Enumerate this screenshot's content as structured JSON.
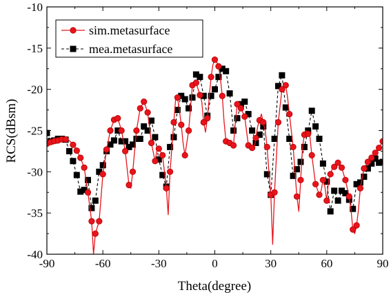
{
  "chart_data": {
    "type": "line",
    "title": "",
    "xlabel": "Theta(degree)",
    "ylabel": "RCS(dBsm)",
    "xlim": [
      -90,
      90
    ],
    "ylim": [
      -40,
      -10
    ],
    "xticks": [
      -90,
      -60,
      -30,
      0,
      30,
      60,
      90
    ],
    "yticks": [
      -10,
      -15,
      -20,
      -25,
      -30,
      -35,
      -40
    ],
    "xtick_labels": [
      "-90",
      "-60",
      "-30",
      "0",
      "30",
      "60",
      "90"
    ],
    "ytick_labels": [
      "-10",
      "-15",
      "-20",
      "-25",
      "-30",
      "-35",
      "-40"
    ],
    "grid": false,
    "legend_position": "top-left",
    "series": [
      {
        "name": "sim.metasurface",
        "color": "#e8141c",
        "line_style": "solid",
        "marker": "circle",
        "points": [
          [
            -90,
            -26.6
          ],
          [
            -87,
            -26.3
          ],
          [
            -84,
            -26.2
          ],
          [
            -81,
            -26.0
          ],
          [
            -78,
            -26.2
          ],
          [
            -75,
            -27.0
          ],
          [
            -72,
            -28.3
          ],
          [
            -70,
            -29.5
          ],
          [
            -68,
            -32.5
          ],
          [
            -66,
            -36.0
          ],
          [
            -65,
            -40.0
          ],
          [
            -64,
            -37.5
          ],
          [
            -62,
            -36.0
          ],
          [
            -60,
            -30.3
          ],
          [
            -58,
            -27.3
          ],
          [
            -56,
            -25.0
          ],
          [
            -54,
            -23.7
          ],
          [
            -52,
            -23.5
          ],
          [
            -50,
            -25.0
          ],
          [
            -48,
            -27.5
          ],
          [
            -46,
            -31.6
          ],
          [
            -45,
            -32.0
          ],
          [
            -44,
            -30.0
          ],
          [
            -42,
            -25.0
          ],
          [
            -40,
            -22.3
          ],
          [
            -38,
            -21.5
          ],
          [
            -36,
            -22.8
          ],
          [
            -34,
            -26.5
          ],
          [
            -32,
            -28.7
          ],
          [
            -31,
            -27.4
          ],
          [
            -30,
            -27.2
          ],
          [
            -28,
            -28.0
          ],
          [
            -26,
            -32.0
          ],
          [
            -25,
            -35.2
          ],
          [
            -24,
            -30.0
          ],
          [
            -22,
            -24.0
          ],
          [
            -21,
            -21.2
          ],
          [
            -20,
            -21.0
          ],
          [
            -19,
            -22.5
          ],
          [
            -18,
            -24.3
          ],
          [
            -17,
            -26.5
          ],
          [
            -16,
            -28.0
          ],
          [
            -14,
            -25.0
          ],
          [
            -12,
            -19.5
          ],
          [
            -11,
            -19.0
          ],
          [
            -10,
            -19.2
          ],
          [
            -8,
            -20.7
          ],
          [
            -7,
            -21.5
          ],
          [
            -6,
            -24.0
          ],
          [
            -5,
            -25.2
          ],
          [
            -4,
            -23.5
          ],
          [
            -2,
            -18.5
          ],
          [
            -1,
            -17.0
          ],
          [
            0,
            -16.4
          ],
          [
            1,
            -16.7
          ],
          [
            2,
            -17.2
          ],
          [
            3,
            -18.7
          ],
          [
            4,
            -20.8
          ],
          [
            5,
            -24.0
          ],
          [
            6,
            -26.3
          ],
          [
            8,
            -26.5
          ],
          [
            10,
            -26.8
          ],
          [
            11,
            -24.0
          ],
          [
            12,
            -21.8
          ],
          [
            14,
            -22.3
          ],
          [
            16,
            -23.3
          ],
          [
            18,
            -26.8
          ],
          [
            19,
            -27.0
          ],
          [
            20,
            -27.1
          ],
          [
            21,
            -27.3
          ],
          [
            23,
            -24.5
          ],
          [
            25,
            -23.0
          ],
          [
            27,
            -25.0
          ],
          [
            28,
            -27.0
          ],
          [
            29,
            -30.0
          ],
          [
            30,
            -32.8
          ],
          [
            31,
            -38.8
          ],
          [
            32,
            -32.5
          ],
          [
            33,
            -28.2
          ],
          [
            34,
            -24.0
          ],
          [
            36,
            -20.0
          ],
          [
            37,
            -19.7
          ],
          [
            38,
            -19.5
          ],
          [
            39,
            -21.0
          ],
          [
            40,
            -23.0
          ],
          [
            41,
            -25.0
          ],
          [
            42,
            -27.0
          ],
          [
            43,
            -30.0
          ],
          [
            44,
            -33.0
          ],
          [
            45,
            -34.8
          ],
          [
            46,
            -31.0
          ],
          [
            47,
            -27.0
          ],
          [
            48,
            -25.5
          ],
          [
            49,
            -25.0
          ],
          [
            51,
            -25.8
          ],
          [
            52,
            -28.0
          ],
          [
            54,
            -31.5
          ],
          [
            56,
            -32.8
          ],
          [
            57,
            -32.3
          ],
          [
            58,
            -31.0
          ],
          [
            59,
            -31.8
          ],
          [
            60,
            -33.5
          ],
          [
            61,
            -31.0
          ],
          [
            63,
            -29.6
          ],
          [
            65,
            -29.2
          ],
          [
            66,
            -28.9
          ],
          [
            68,
            -29.5
          ],
          [
            70,
            -31.0
          ],
          [
            72,
            -33.0
          ],
          [
            73,
            -34.6
          ],
          [
            74,
            -37.0
          ],
          [
            75,
            -37.5
          ],
          [
            76,
            -36.5
          ],
          [
            77,
            -34.6
          ],
          [
            78,
            -32.0
          ],
          [
            80,
            -29.6
          ],
          [
            82,
            -28.8
          ],
          [
            84,
            -28.3
          ],
          [
            86,
            -27.7
          ],
          [
            88,
            -27.1
          ],
          [
            90,
            -26.3
          ]
        ],
        "marker_x": [
          -90,
          -88,
          -86,
          -84,
          -82,
          -80,
          -76,
          -74,
          -72,
          -70,
          -68,
          -66,
          -64,
          -62,
          -60,
          -58,
          -56,
          -54,
          -52,
          -50,
          -48,
          -46,
          -44,
          -42,
          -40,
          -38,
          -36,
          -34,
          -32,
          -30,
          -28,
          -26,
          -24,
          -22,
          -20,
          -18,
          -16,
          -14,
          -12,
          -10,
          -8,
          -6,
          -4,
          -2,
          0,
          2,
          4,
          6,
          8,
          10,
          12,
          14,
          16,
          18,
          20,
          22,
          24,
          26,
          28,
          30,
          32,
          34,
          36,
          38,
          40,
          42,
          44,
          46,
          48,
          50,
          52,
          54,
          56,
          58,
          60,
          62,
          64,
          66,
          68,
          70,
          72,
          74,
          76,
          78,
          80,
          82,
          84,
          86,
          88,
          90
        ]
      },
      {
        "name": "mea.metasurface",
        "color": "#000000",
        "line_style": "dashed",
        "marker": "square",
        "points": [
          [
            -90,
            -25.3
          ],
          [
            -88,
            -26.3
          ],
          [
            -86,
            -26.2
          ],
          [
            -84,
            -26.0
          ],
          [
            -82,
            -26.0
          ],
          [
            -80,
            -26.1
          ],
          [
            -78,
            -27.5
          ],
          [
            -76,
            -28.7
          ],
          [
            -74,
            -30.4
          ],
          [
            -72,
            -32.4
          ],
          [
            -70,
            -32.2
          ],
          [
            -68,
            -31.0
          ],
          [
            -66,
            -34.4
          ],
          [
            -64,
            -33.5
          ],
          [
            -62,
            -30.0
          ],
          [
            -60,
            -29.2
          ],
          [
            -58,
            -27.5
          ],
          [
            -56,
            -26.7
          ],
          [
            -54,
            -26.2
          ],
          [
            -52,
            -25.0
          ],
          [
            -50,
            -26.3
          ],
          [
            -48,
            -26.3
          ],
          [
            -46,
            -27.0
          ],
          [
            -44,
            -26.7
          ],
          [
            -42,
            -26.0
          ],
          [
            -40,
            -26.0
          ],
          [
            -38,
            -24.5
          ],
          [
            -36,
            -25.0
          ],
          [
            -34,
            -23.8
          ],
          [
            -32,
            -25.8
          ],
          [
            -30,
            -28.5
          ],
          [
            -28,
            -30.4
          ],
          [
            -26,
            -31.8
          ],
          [
            -24,
            -27.0
          ],
          [
            -22,
            -25.8
          ],
          [
            -20,
            -22.5
          ],
          [
            -18,
            -20.8
          ],
          [
            -16,
            -21.2
          ],
          [
            -14,
            -22.3
          ],
          [
            -12,
            -21.0
          ],
          [
            -10,
            -18.2
          ],
          [
            -8,
            -18.5
          ],
          [
            -6,
            -20.8
          ],
          [
            -4,
            -23.2
          ],
          [
            -2,
            -20.8
          ],
          [
            0,
            -20.0
          ],
          [
            2,
            -18.5
          ],
          [
            4,
            -17.5
          ],
          [
            6,
            -17.8
          ],
          [
            8,
            -20.5
          ],
          [
            10,
            -25.0
          ],
          [
            12,
            -23.5
          ],
          [
            14,
            -21.8
          ],
          [
            16,
            -21.5
          ],
          [
            18,
            -23.0
          ],
          [
            20,
            -25.0
          ],
          [
            22,
            -26.5
          ],
          [
            24,
            -25.5
          ],
          [
            26,
            -24.5
          ],
          [
            28,
            -30.3
          ],
          [
            30,
            -32.8
          ],
          [
            32,
            -26.0
          ],
          [
            34,
            -19.6
          ],
          [
            36,
            -18.3
          ],
          [
            38,
            -22.2
          ],
          [
            40,
            -26.0
          ],
          [
            42,
            -30.5
          ],
          [
            44,
            -29.7
          ],
          [
            46,
            -28.8
          ],
          [
            48,
            -27.0
          ],
          [
            50,
            -25.0
          ],
          [
            52,
            -22.6
          ],
          [
            54,
            -24.5
          ],
          [
            56,
            -26.0
          ],
          [
            58,
            -29.0
          ],
          [
            60,
            -31.2
          ],
          [
            62,
            -34.8
          ],
          [
            64,
            -32.3
          ],
          [
            66,
            -33.5
          ],
          [
            68,
            -32.3
          ],
          [
            70,
            -32.6
          ],
          [
            72,
            -33.4
          ],
          [
            74,
            -34.5
          ],
          [
            76,
            -31.5
          ],
          [
            78,
            -31.3
          ],
          [
            80,
            -30.6
          ],
          [
            82,
            -29.6
          ],
          [
            84,
            -29.0
          ],
          [
            86,
            -28.4
          ],
          [
            88,
            -28.9
          ],
          [
            90,
            -28.8
          ]
        ]
      }
    ]
  }
}
